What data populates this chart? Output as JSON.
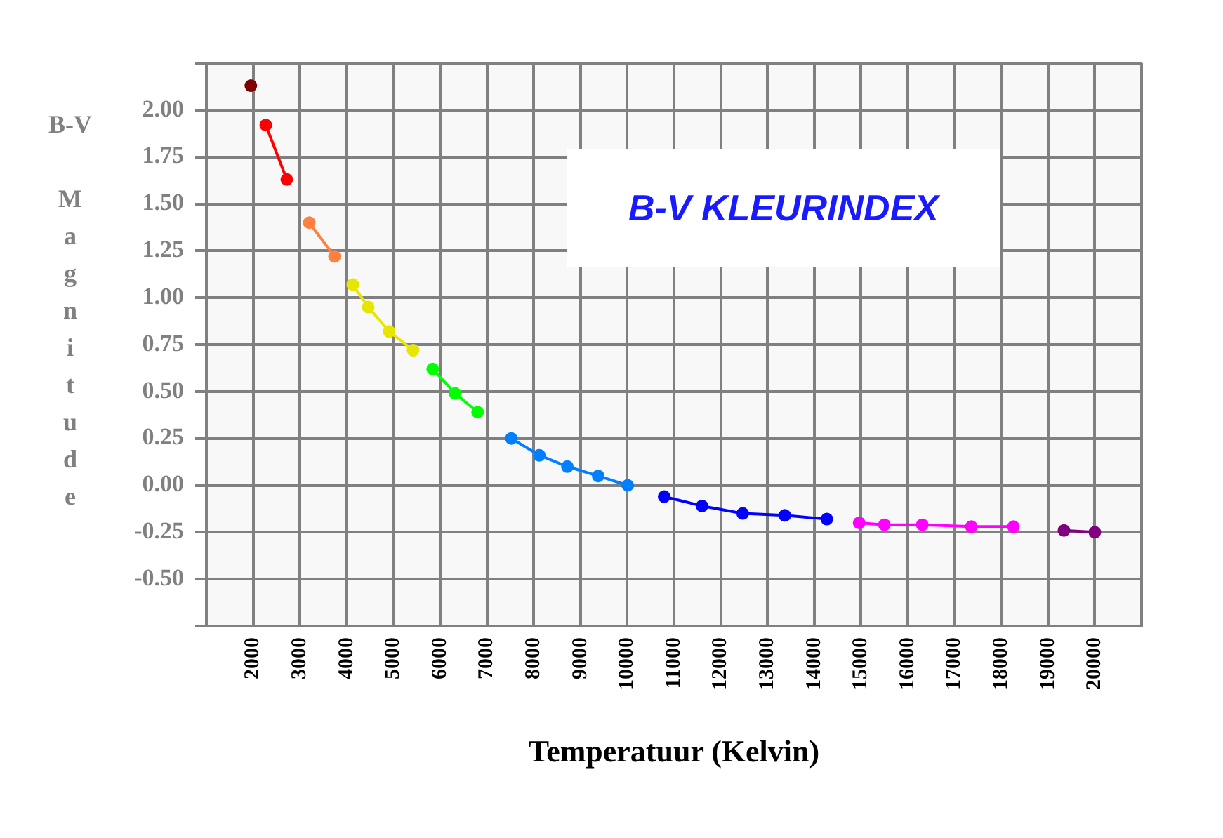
{
  "chart_data": {
    "type": "line",
    "title": "B-V KLEURINDEX",
    "xlabel": "Temperatuur (Kelvin)",
    "ylabel": "B-V Magnitude",
    "xlim": [
      1000,
      21000
    ],
    "xticks": [
      2000,
      3000,
      4000,
      5000,
      6000,
      7000,
      8000,
      9000,
      10000,
      11000,
      12000,
      13000,
      14000,
      15000,
      16000,
      17000,
      18000,
      19000,
      20000
    ],
    "ylim": [
      -0.75,
      2.25
    ],
    "yticks": [
      {
        "value": 2.25,
        "label": null
      },
      {
        "value": 2,
        "label": "2.00"
      },
      1.75,
      {
        "value": 1.5,
        "label": "1.50"
      },
      1.25,
      {
        "value": 1,
        "label": "1.00"
      },
      0.75,
      {
        "value": 0.5,
        "label": "0.50"
      },
      0.25,
      {
        "value": 0,
        "label": "0.00"
      },
      -0.25,
      {
        "value": -0.5,
        "label": "-0.50"
      },
      {
        "value": -0.75,
        "label": null
      }
    ],
    "grid": true,
    "marker": "circle",
    "line_style": "solid",
    "series": [
      {
        "color": "#800000",
        "x": [
          1950
        ],
        "values": [
          2.13
        ]
      },
      {
        "color": "#ff0000",
        "x": [
          2270,
          2720
        ],
        "values": [
          1.92,
          1.63
        ]
      },
      {
        "color": "#ff8040",
        "x": [
          3200,
          3740
        ],
        "values": [
          1.4,
          1.22
        ]
      },
      {
        "color": "#e6e600",
        "x": [
          4130,
          4460,
          4910,
          5420
        ],
        "values": [
          1.07,
          0.95,
          0.82,
          0.72
        ]
      },
      {
        "color": "#00ff00",
        "x": [
          5840,
          6320,
          6800
        ],
        "values": [
          0.62,
          0.49,
          0.39
        ]
      },
      {
        "color": "#0080ff",
        "x": [
          7520,
          8120,
          8720,
          9380,
          10010
        ],
        "values": [
          0.25,
          0.16,
          0.1,
          0.05,
          0.0
        ]
      },
      {
        "color": "#0000ff",
        "x": [
          10790,
          11600,
          12470,
          13370,
          14270
        ],
        "values": [
          -0.06,
          -0.11,
          -0.15,
          -0.16,
          -0.18
        ]
      },
      {
        "color": "#ff00ff",
        "x": [
          14960,
          15500,
          16310,
          17360,
          18260
        ],
        "values": [
          -0.2,
          -0.21,
          -0.21,
          -0.22,
          -0.22
        ]
      },
      {
        "color": "#800080",
        "x": [
          19340,
          20000
        ],
        "values": [
          -0.24,
          -0.25
        ]
      }
    ]
  }
}
